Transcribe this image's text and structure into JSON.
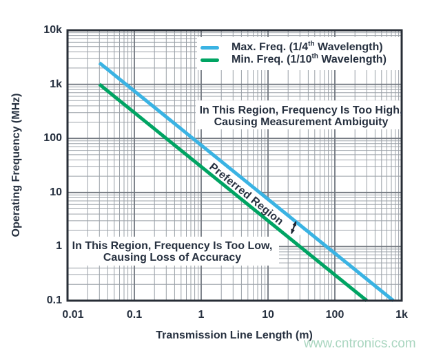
{
  "chart_data": {
    "type": "line",
    "title": "",
    "x_axis": {
      "label": "Transmission Line Length (m)",
      "scale": "log",
      "range": [
        0.01,
        1000
      ],
      "ticks": [
        {
          "v": 0.01,
          "label": "0.01"
        },
        {
          "v": 0.1,
          "label": "0.1"
        },
        {
          "v": 1,
          "label": "1"
        },
        {
          "v": 10,
          "label": "10"
        },
        {
          "v": 100,
          "label": "100"
        },
        {
          "v": 1000,
          "label": "1k"
        }
      ]
    },
    "y_axis": {
      "label": "Operating Frequency (MHz)",
      "scale": "log",
      "range": [
        0.1,
        10000
      ],
      "ticks": [
        {
          "v": 0.1,
          "label": "0.1"
        },
        {
          "v": 1,
          "label": "1"
        },
        {
          "v": 10,
          "label": "10"
        },
        {
          "v": 100,
          "label": "100"
        },
        {
          "v": 1000,
          "label": "1k"
        },
        {
          "v": 10000,
          "label": "10k"
        }
      ]
    },
    "grid": "log-log, major and minor gridlines on",
    "series": [
      {
        "name": "Max. Freq. (1/4th Wavelength)",
        "color": "#3ab3e3",
        "points": [
          [
            0.03,
            2500
          ],
          [
            750,
            0.1
          ]
        ]
      },
      {
        "name": "Min. Freq. (1/10th Wavelength)",
        "color": "#00a463",
        "points": [
          [
            0.03,
            1000
          ],
          [
            300,
            0.1
          ]
        ]
      }
    ],
    "legend": {
      "position": "top-right-inside",
      "items": [
        {
          "prefix": "Max. Freq. (1/4",
          "sup": "th",
          "suffix": " Wavelength)"
        },
        {
          "prefix": "Min. Freq. (1/10",
          "sup": "th",
          "suffix": " Wavelength)"
        }
      ]
    },
    "annotations": {
      "too_high": {
        "line1": "In This Region, Frequency Is Too High,",
        "line2": "Causing Measurement Ambiguity"
      },
      "preferred": {
        "text": "Preferred Region"
      },
      "too_low": {
        "line1": "In This Region, Frequency Is Too Low,",
        "line2": "Causing Loss of Accuracy"
      }
    }
  },
  "watermark": {
    "text": "www.cntronics.com",
    "color": "#aad6c0"
  },
  "colors": {
    "text": "#273140",
    "grid_minor": "#9aa0a7",
    "grid_major": "#71777f",
    "border": "#272d36",
    "background": "#ffffff"
  }
}
